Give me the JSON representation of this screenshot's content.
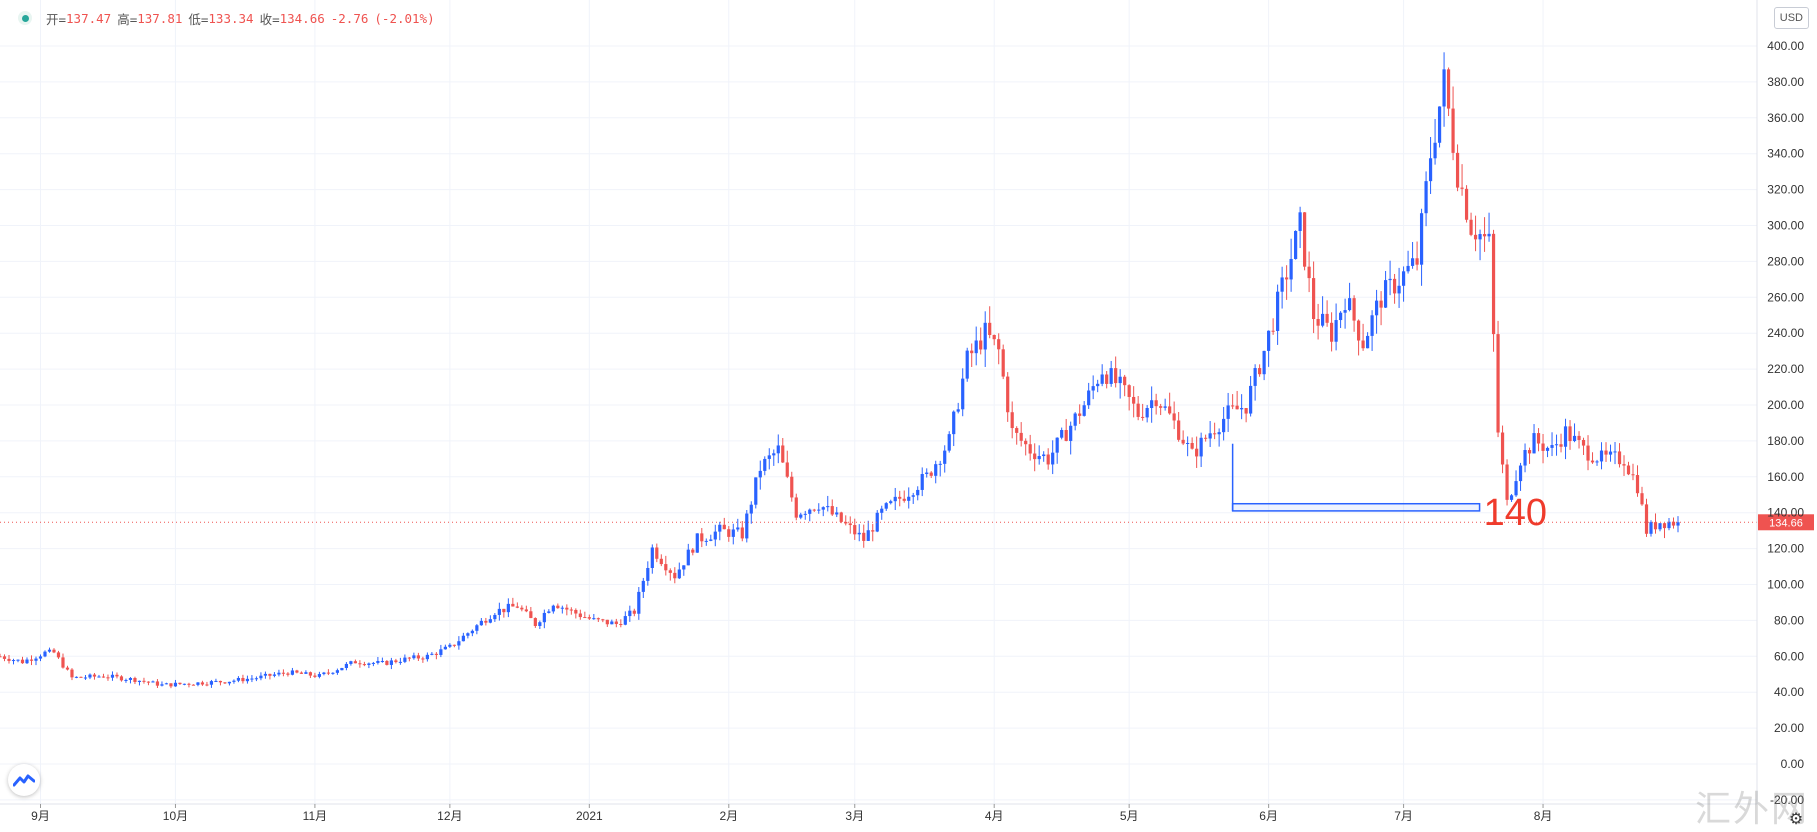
{
  "legend": {
    "open_label": "开=",
    "open_value": "137.47",
    "high_label": "高=",
    "high_value": "137.81",
    "low_label": "低=",
    "low_value": "133.34",
    "close_label": "收=",
    "close_value": "134.66",
    "change": "-2.76",
    "change_pct": "(-2.01%)"
  },
  "currency": "USD",
  "watermark": "汇外网",
  "colors": {
    "up": "#2962ff",
    "down": "#ef5350",
    "grid": "#f0f3fa",
    "price_line": "#ef5350",
    "annotation": "#2962ff",
    "annotation_text": "#ef3b2c"
  },
  "annotation": {
    "label": "140",
    "price_top": 145,
    "price_bottom": 141,
    "from_date": "2021-05-24",
    "to_date": "2021-07-09"
  },
  "price_tag": "134.66",
  "chart_data": {
    "type": "candlestick",
    "title": "",
    "x_labels": [
      "9月",
      "10月",
      "11月",
      "12月",
      "2021",
      "2月",
      "3月",
      "4月",
      "5月",
      "6月",
      "7月",
      "8月"
    ],
    "x_label_dates": [
      "2020-09-01",
      "2020-10-01",
      "2020-11-01",
      "2020-12-01",
      "2021-01-01",
      "2021-02-01",
      "2021-03-01",
      "2021-04-01",
      "2021-05-01",
      "2021-06-01",
      "2021-07-01",
      "2021-08-01"
    ],
    "y_ticks": [
      "-20.00",
      "0.00",
      "20.00",
      "40.00",
      "60.00",
      "80.00",
      "100.00",
      "120.00",
      "140.00",
      "160.00",
      "180.00",
      "200.00",
      "220.00",
      "240.00",
      "260.00",
      "280.00",
      "300.00",
      "320.00",
      "340.00",
      "360.00",
      "380.00",
      "400.00"
    ],
    "ylim": [
      -20,
      410
    ],
    "xlim": [
      "2020-08-23",
      "2021-08-31"
    ],
    "last_price": 134.66,
    "close_path": [
      [
        "2020-08-23",
        60
      ],
      [
        "2020-08-28",
        57
      ],
      [
        "2020-09-02",
        62
      ],
      [
        "2020-09-04",
        62
      ],
      [
        "2020-09-08",
        48
      ],
      [
        "2020-09-15",
        49
      ],
      [
        "2020-09-22",
        47
      ],
      [
        "2020-09-28",
        44
      ],
      [
        "2020-10-05",
        45
      ],
      [
        "2020-10-12",
        46
      ],
      [
        "2020-10-19",
        48
      ],
      [
        "2020-10-26",
        51
      ],
      [
        "2020-11-02",
        49
      ],
      [
        "2020-11-06",
        53
      ],
      [
        "2020-11-10",
        57
      ],
      [
        "2020-11-16",
        56
      ],
      [
        "2020-11-20",
        58
      ],
      [
        "2020-11-26",
        60
      ],
      [
        "2020-12-01",
        65
      ],
      [
        "2020-12-06",
        75
      ],
      [
        "2020-12-11",
        85
      ],
      [
        "2020-12-16",
        88
      ],
      [
        "2020-12-20",
        78
      ],
      [
        "2020-12-24",
        90
      ],
      [
        "2020-12-28",
        85
      ],
      [
        "2021-01-02",
        80
      ],
      [
        "2021-01-07",
        78
      ],
      [
        "2021-01-11",
        85
      ],
      [
        "2021-01-15",
        120
      ],
      [
        "2021-01-20",
        105
      ],
      [
        "2021-01-25",
        125
      ],
      [
        "2021-01-30",
        130
      ],
      [
        "2021-02-04",
        128
      ],
      [
        "2021-02-08",
        165
      ],
      [
        "2021-02-12",
        175
      ],
      [
        "2021-02-16",
        140
      ],
      [
        "2021-02-21",
        145
      ],
      [
        "2021-02-26",
        135
      ],
      [
        "2021-03-03",
        125
      ],
      [
        "2021-03-07",
        140
      ],
      [
        "2021-03-12",
        150
      ],
      [
        "2021-03-17",
        160
      ],
      [
        "2021-03-22",
        180
      ],
      [
        "2021-03-26",
        225
      ],
      [
        "2021-03-30",
        240
      ],
      [
        "2021-04-02",
        230
      ],
      [
        "2021-04-05",
        185
      ],
      [
        "2021-04-09",
        175
      ],
      [
        "2021-04-13",
        170
      ],
      [
        "2021-04-17",
        185
      ],
      [
        "2021-04-21",
        200
      ],
      [
        "2021-04-25",
        220
      ],
      [
        "2021-04-29",
        210
      ],
      [
        "2021-05-03",
        195
      ],
      [
        "2021-05-07",
        205
      ],
      [
        "2021-05-11",
        190
      ],
      [
        "2021-05-15",
        172
      ],
      [
        "2021-05-19",
        185
      ],
      [
        "2021-05-23",
        195
      ],
      [
        "2021-05-27",
        200
      ],
      [
        "2021-05-31",
        230
      ],
      [
        "2021-06-04",
        265
      ],
      [
        "2021-06-08",
        300
      ],
      [
        "2021-06-11",
        250
      ],
      [
        "2021-06-15",
        240
      ],
      [
        "2021-06-18",
        260
      ],
      [
        "2021-06-22",
        235
      ],
      [
        "2021-06-26",
        260
      ],
      [
        "2021-06-30",
        270
      ],
      [
        "2021-07-04",
        280
      ],
      [
        "2021-07-07",
        340
      ],
      [
        "2021-07-10",
        380
      ],
      [
        "2021-07-13",
        330
      ],
      [
        "2021-07-16",
        300
      ],
      [
        "2021-07-20",
        290
      ],
      [
        "2021-07-22",
        185
      ],
      [
        "2021-07-24",
        145
      ],
      [
        "2021-07-27",
        170
      ],
      [
        "2021-07-30",
        180
      ],
      [
        "2021-08-03",
        175
      ],
      [
        "2021-08-06",
        185
      ],
      [
        "2021-08-10",
        175
      ],
      [
        "2021-08-14",
        170
      ],
      [
        "2021-08-19",
        170
      ],
      [
        "2021-08-22",
        155
      ],
      [
        "2021-08-24",
        130
      ],
      [
        "2021-08-27",
        135
      ],
      [
        "2021-08-31",
        134.66
      ]
    ]
  }
}
